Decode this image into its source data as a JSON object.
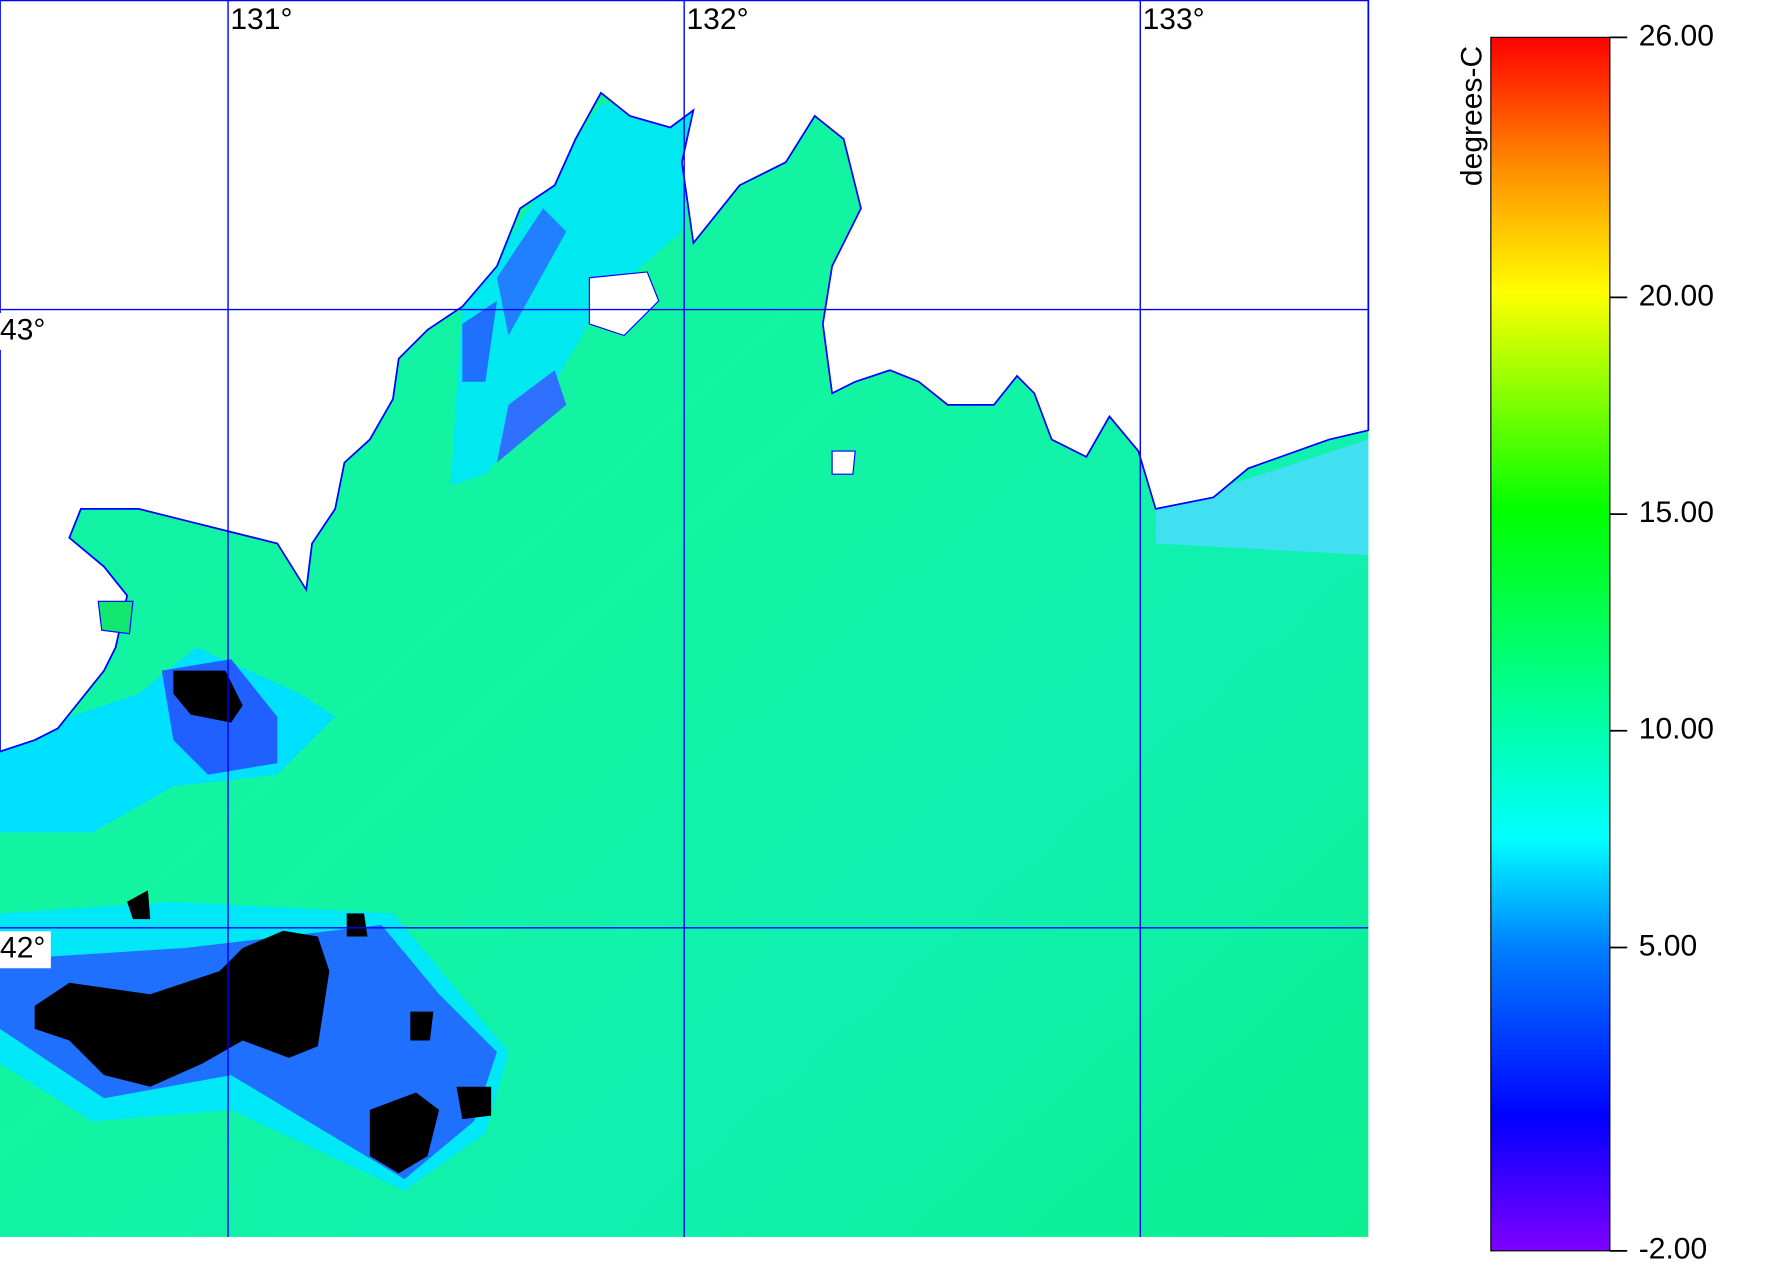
{
  "map": {
    "lon_range": [
      130.5,
      133.5
    ],
    "lat_range": [
      41.5,
      43.5
    ],
    "lon_lines": [
      {
        "value": 131,
        "label": "131°"
      },
      {
        "value": 132,
        "label": "132°"
      },
      {
        "value": 133,
        "label": "133°"
      }
    ],
    "lat_lines": [
      {
        "value": 43,
        "label": "43°"
      },
      {
        "value": 42,
        "label": "42°"
      }
    ]
  },
  "colorbar": {
    "label": "degrees-C",
    "ticks": [
      {
        "value": 26,
        "label": "26.00"
      },
      {
        "value": 20,
        "label": "20.00"
      },
      {
        "value": 15,
        "label": "15.00"
      },
      {
        "value": 10,
        "label": "10.00"
      },
      {
        "value": 5,
        "label": "5.00"
      },
      {
        "value": -2,
        "label": "-2.00"
      }
    ]
  }
}
